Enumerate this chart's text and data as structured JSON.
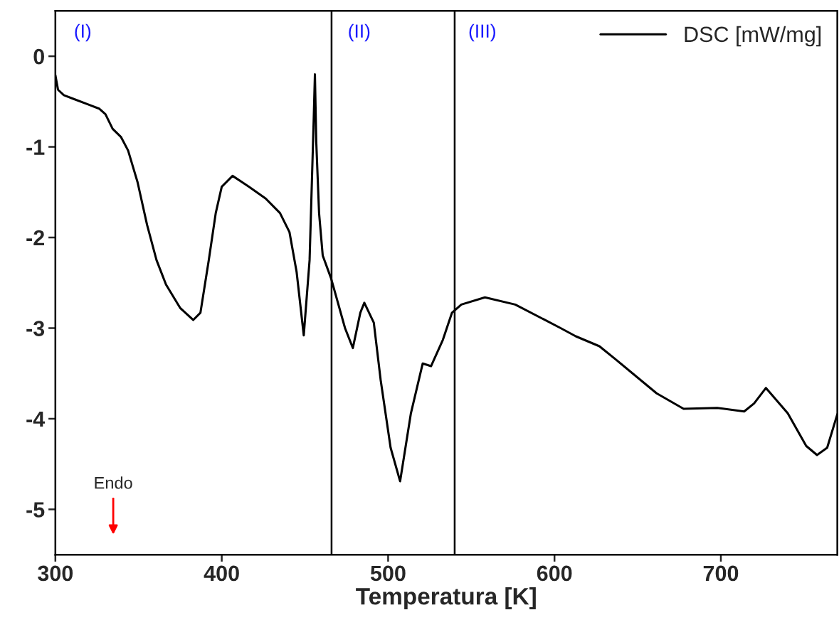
{
  "chart_data": {
    "type": "line",
    "xlabel": "Temperatura [K]",
    "xlim": [
      300,
      770
    ],
    "xticks": [
      300,
      400,
      500,
      600,
      700
    ],
    "ylim": [
      -5.5,
      0.5
    ],
    "yticks": [
      -5,
      -4,
      -3,
      -2,
      -1,
      0
    ],
    "x": [
      300,
      301.6,
      305.1,
      310.8,
      319.4,
      326.5,
      330.1,
      334.4,
      339.4,
      343.7,
      349.4,
      355.1,
      360.8,
      366.5,
      375.1,
      382.9,
      387.2,
      392.2,
      396.4,
      400,
      406.5,
      416.4,
      426.4,
      435,
      440.7,
      445,
      449.3,
      452.8,
      455.3,
      456,
      456.8,
      458.5,
      460.7,
      465.7,
      474.1,
      478.8,
      483.3,
      485.7,
      491.4,
      495.5,
      501.5,
      507.2,
      513.7,
      520.8,
      525.8,
      532.9,
      538.4,
      544,
      558.2,
      576.4,
      603.7,
      612.8,
      627,
      637.1,
      661.4,
      677.6,
      697.8,
      714,
      720,
      727.1,
      740.2,
      751.3,
      757.8,
      763.9,
      770
    ],
    "series": [
      {
        "name": "DSC [mW/mg]",
        "color": "#000000",
        "values": [
          -0.21,
          -0.37,
          -0.43,
          -0.47,
          -0.53,
          -0.58,
          -0.64,
          -0.8,
          -0.89,
          -1.04,
          -1.39,
          -1.86,
          -2.25,
          -2.52,
          -2.78,
          -2.91,
          -2.83,
          -2.25,
          -1.73,
          -1.44,
          -1.32,
          -1.44,
          -1.57,
          -1.73,
          -1.94,
          -2.38,
          -3.08,
          -2.25,
          -0.68,
          -0.2,
          -0.94,
          -1.73,
          -2.2,
          -2.45,
          -3.0,
          -3.22,
          -2.83,
          -2.72,
          -2.94,
          -3.57,
          -4.32,
          -4.69,
          -3.94,
          -3.39,
          -3.42,
          -3.13,
          -2.83,
          -2.74,
          -2.66,
          -2.74,
          -3.0,
          -3.09,
          -3.2,
          -3.35,
          -3.72,
          -3.89,
          -3.88,
          -3.92,
          -3.83,
          -3.66,
          -3.94,
          -4.3,
          -4.4,
          -4.32,
          -3.95
        ]
      }
    ],
    "ref_lines": [
      {
        "axis": "x",
        "value": 466,
        "color": "#000000",
        "label": "(II)"
      },
      {
        "axis": "x",
        "value": 540,
        "color": "#000000",
        "label": "(III)"
      }
    ],
    "annotations": [
      "(I)",
      "Endo"
    ],
    "legend": "top right",
    "grid": false,
    "marker": "none",
    "line_style": "solid"
  }
}
